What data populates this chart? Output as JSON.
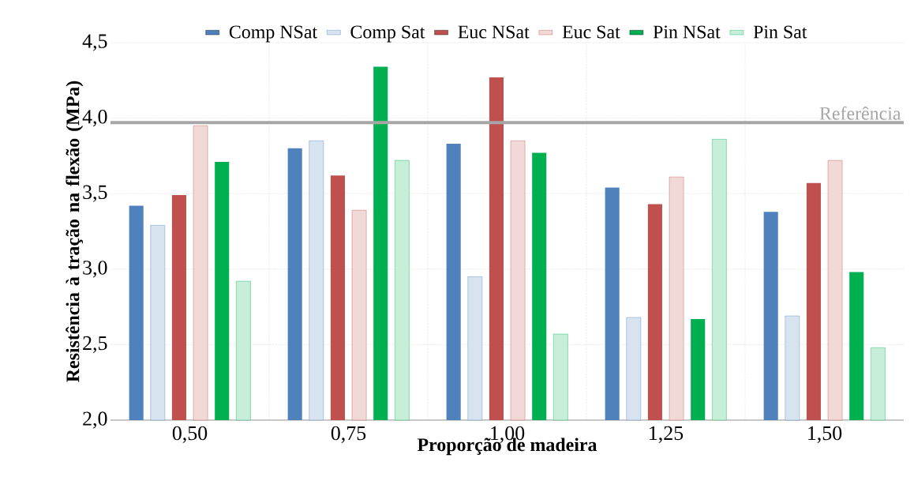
{
  "chart_data": {
    "type": "bar",
    "xlabel": "Proporção de madeira",
    "ylabel": "Resistência à tração na flexão (MPa)",
    "categories": [
      "0,50",
      "0,75",
      "1,00",
      "1,25",
      "1,50"
    ],
    "series": [
      {
        "name": "Comp NSat",
        "color": "#4f81bd",
        "values": [
          3.42,
          3.8,
          3.83,
          3.54,
          3.38
        ]
      },
      {
        "name": "Comp Sat",
        "color": "#4f81bd",
        "values": [
          3.29,
          3.85,
          2.95,
          2.68,
          2.69
        ]
      },
      {
        "name": "Euc NSat",
        "color": "#c0504d",
        "values": [
          3.49,
          3.62,
          4.27,
          3.43,
          3.57
        ]
      },
      {
        "name": "Euc Sat",
        "color": "#c0504d",
        "values": [
          3.95,
          3.39,
          3.85,
          3.61,
          3.72
        ]
      },
      {
        "name": "Pin NSat",
        "color": "#00b050",
        "values": [
          3.71,
          4.34,
          3.77,
          2.67,
          2.98
        ]
      },
      {
        "name": "Pin Sat",
        "color": "#00b050",
        "values": [
          2.92,
          3.72,
          2.57,
          3.86,
          2.48
        ]
      }
    ],
    "ylim": [
      2.0,
      4.5
    ],
    "yticks": [
      {
        "value": 2.0,
        "label": "2,0"
      },
      {
        "value": 2.5,
        "label": "2,5"
      },
      {
        "value": 3.0,
        "label": "3,0"
      },
      {
        "value": 3.5,
        "label": "3,5"
      },
      {
        "value": 4.0,
        "label": "4,0"
      },
      {
        "value": 4.5,
        "label": "4,5"
      }
    ],
    "ref_lines": [
      {
        "axis": "y",
        "value": 3.97,
        "label": "Referência",
        "color": "#a6a6a6"
      }
    ],
    "grid": true,
    "legend": "top"
  }
}
